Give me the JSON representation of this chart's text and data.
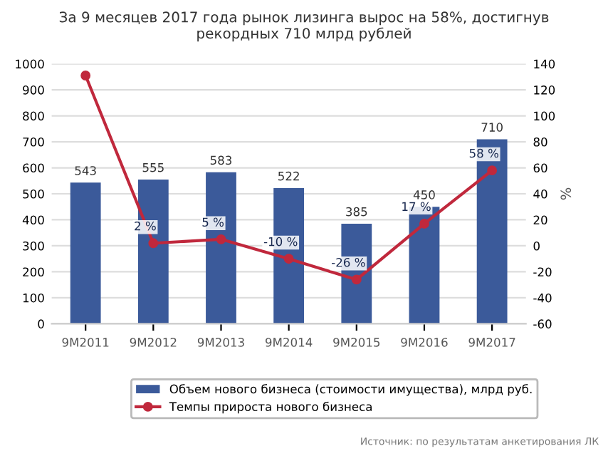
{
  "chart_data": {
    "type": "bar",
    "title": "За 9 месяцев 2017 года рынок лизинга вырос на 58%, достигнув\nрекордных 710 млрд рублей",
    "categories": [
      "9M2011",
      "9M2012",
      "9M2013",
      "9M2014",
      "9M2015",
      "9M2016",
      "9M2017"
    ],
    "series": [
      {
        "name": "Объем нового бизнеса (стоимости имущества), млрд руб.",
        "color": "#3b5a9a",
        "values": [
          543,
          555,
          583,
          522,
          385,
          450,
          710
        ],
        "value_labels": [
          "543",
          "555",
          "583",
          "522",
          "385",
          "450",
          "710"
        ]
      },
      {
        "name": "Темпы прироста нового бизнеса",
        "type": "line",
        "axis": "y2",
        "color": "#c0283c",
        "values": [
          131,
          2,
          5,
          -10,
          -26,
          17,
          58
        ],
        "value_labels": [
          null,
          "2 %",
          "5 %",
          "-10 %",
          "-26 %",
          "17 %",
          "58 %"
        ]
      }
    ],
    "y2label": "%",
    "ylim": [
      0,
      1000
    ],
    "yticks": [
      0,
      100,
      200,
      300,
      400,
      500,
      600,
      700,
      800,
      900,
      1000
    ],
    "y2lim": [
      -60,
      140
    ],
    "y2ticks": [
      -60,
      -40,
      -20,
      0,
      20,
      40,
      60,
      80,
      100,
      120,
      140
    ],
    "grid": "y",
    "legend": "bottom",
    "marker": "circle",
    "annotations": [
      "Источник: по результатам анкетирования ЛК"
    ]
  }
}
